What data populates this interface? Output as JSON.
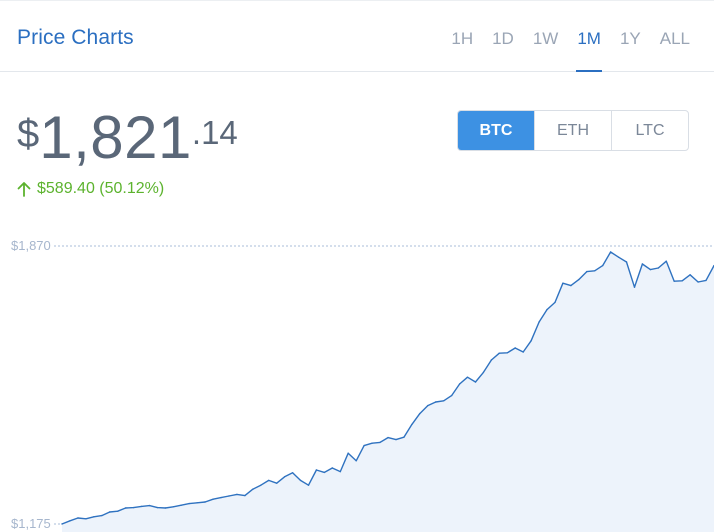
{
  "header": {
    "title": "Price Charts",
    "timeframes": [
      "1H",
      "1D",
      "1W",
      "1M",
      "1Y",
      "ALL"
    ],
    "active_timeframe": "1M"
  },
  "price": {
    "currency": "$",
    "integer": "1,821",
    "decimal": ".14"
  },
  "change": {
    "text": "$589.40 (50.12%)",
    "direction": "up",
    "color": "#5cb32e"
  },
  "coins": {
    "options": [
      "BTC",
      "ETH",
      "LTC"
    ],
    "active": "BTC"
  },
  "colors": {
    "accent": "#2b6fc1",
    "active_button": "#3d91e3",
    "line": "#2f72c0",
    "fill": "#edf3fb"
  },
  "chart_data": {
    "type": "area",
    "y_max_label": "$1,870",
    "y_min_label": "$1,175",
    "ylim": [
      1175,
      1870
    ],
    "values": [
      1175,
      1183,
      1190,
      1188,
      1193,
      1196,
      1205,
      1207,
      1215,
      1216,
      1219,
      1221,
      1216,
      1215,
      1218,
      1222,
      1226,
      1228,
      1230,
      1237,
      1241,
      1245,
      1249,
      1246,
      1262,
      1272,
      1284,
      1277,
      1293,
      1303,
      1284,
      1272,
      1310,
      1304,
      1315,
      1306,
      1352,
      1333,
      1371,
      1377,
      1379,
      1391,
      1386,
      1392,
      1424,
      1451,
      1471,
      1480,
      1483,
      1496,
      1525,
      1542,
      1530,
      1554,
      1585,
      1602,
      1603,
      1615,
      1605,
      1633,
      1680,
      1711,
      1729,
      1777,
      1771,
      1786,
      1806,
      1808,
      1821,
      1855,
      1842,
      1830,
      1767,
      1825,
      1811,
      1815,
      1832,
      1782,
      1783,
      1798,
      1780,
      1784,
      1821
    ]
  }
}
